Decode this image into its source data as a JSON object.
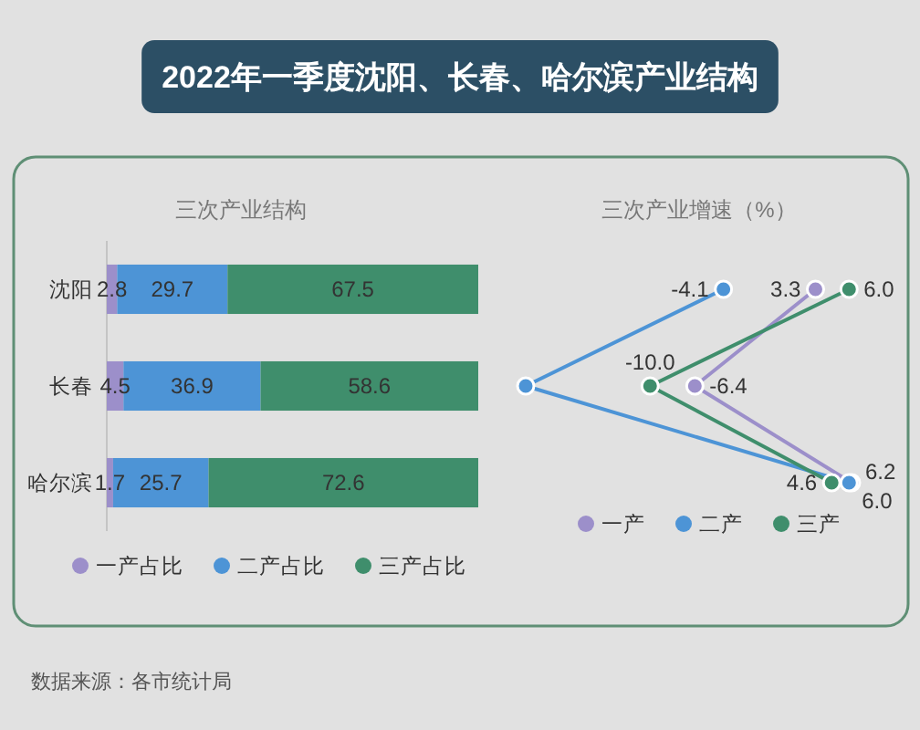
{
  "chart_data": [
    {
      "type": "bar",
      "title": "2022年一季度沈阳、长春、哈尔滨产业结构",
      "subtitle": "三次产业结构",
      "orientation": "horizontal",
      "stacked": true,
      "categories": [
        "沈阳",
        "长春",
        "哈尔滨"
      ],
      "series": [
        {
          "name": "一产占比",
          "color": "#9c8fca",
          "values": [
            2.8,
            4.5,
            1.7
          ]
        },
        {
          "name": "二产占比",
          "color": "#4d94d6",
          "values": [
            29.7,
            36.9,
            25.7
          ]
        },
        {
          "name": "三产占比",
          "color": "#3f8e6c",
          "values": [
            67.5,
            58.6,
            72.6
          ]
        }
      ],
      "data_labels": true,
      "legend": "bottom",
      "tick_labels": "y",
      "annotations": [
        "数据来源：各市统计局"
      ]
    },
    {
      "type": "line",
      "title": "三次产业增速（%）",
      "orientation": "horizontal",
      "categories": [
        null,
        null,
        null
      ],
      "series": [
        {
          "name": "一产",
          "color": "#9c8fca",
          "values": [
            3.3,
            -6.4,
            6.2
          ],
          "value_labels": [
            "3.3",
            "-6.4",
            "6.2"
          ]
        },
        {
          "name": "二产",
          "color": "#4d94d6",
          "values": [
            -4.1,
            -20,
            6.0
          ],
          "value_labels": [
            "-4.1",
            null,
            "6.0"
          ]
        },
        {
          "name": "三产",
          "color": "#3f8e6c",
          "values": [
            6.0,
            -10.0,
            4.6
          ],
          "value_labels": [
            "6.0",
            "-10.0",
            "4.6"
          ]
        }
      ],
      "marker": "circle",
      "line_style": "solid",
      "legend": "bottom"
    }
  ]
}
